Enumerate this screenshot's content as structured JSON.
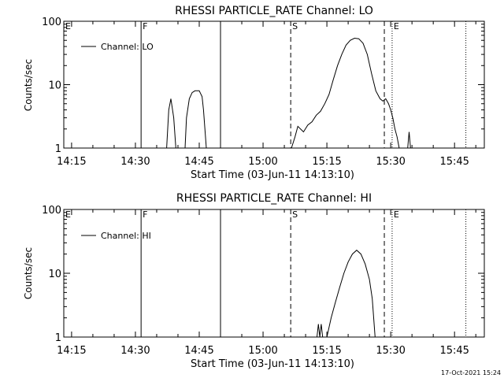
{
  "footer": {
    "timestamp": "17-Oct-2021 15:24"
  },
  "chart_data": [
    {
      "type": "line",
      "title": "RHESSI PARTICLE_RATE Channel: LO",
      "xlabel": "Start Time (03-Jun-11 14:13:10)",
      "ylabel": "Counts/sec",
      "yscale": "log",
      "xlim": [
        "14:13:10",
        "15:52:00"
      ],
      "ylim": [
        1,
        100
      ],
      "x_ticks": [
        "14:15",
        "14:30",
        "14:45",
        "15:00",
        "15:15",
        "15:30",
        "15:45"
      ],
      "y_ticks": [
        "1",
        "10",
        "100"
      ],
      "legend": {
        "position": "top-left",
        "entries": [
          "Channel: LO"
        ]
      },
      "markers": [
        {
          "label": "F",
          "time": "14:31:20",
          "style": "solid-thin"
        },
        {
          "label": "",
          "time": "14:50:00",
          "style": "solid"
        },
        {
          "label": "S",
          "time": "15:06:30",
          "style": "dashed"
        },
        {
          "label": "",
          "time": "15:28:30",
          "style": "dashed"
        },
        {
          "label": "E",
          "time": "15:30:20",
          "style": "dotted"
        },
        {
          "label": "",
          "time": "15:47:40",
          "style": "dotted"
        },
        {
          "label": "E",
          "time": "14:13:10",
          "style": "edge"
        }
      ],
      "series": [
        {
          "name": "Channel: LO",
          "segments": [
            [
              [
                "14:37:20",
                1
              ],
              [
                "14:37:50",
                4
              ],
              [
                "14:38:20",
                6
              ],
              [
                "14:39:00",
                3
              ],
              [
                "14:39:30",
                1
              ]
            ],
            [
              [
                "14:41:40",
                1
              ],
              [
                "14:42:00",
                3
              ],
              [
                "14:42:40",
                6
              ],
              [
                "14:43:20",
                7.5
              ],
              [
                "14:44:00",
                8
              ],
              [
                "14:45:00",
                8
              ],
              [
                "14:45:40",
                6.5
              ],
              [
                "14:46:00",
                4
              ],
              [
                "14:46:40",
                1
              ]
            ],
            [
              [
                "15:06:40",
                1
              ],
              [
                "15:07:30",
                1.5
              ],
              [
                "15:08:10",
                2.2
              ],
              [
                "15:09:30",
                1.8
              ],
              [
                "15:10:30",
                2.3
              ],
              [
                "15:11:30",
                2.6
              ],
              [
                "15:12:30",
                3.3
              ],
              [
                "15:13:30",
                3.8
              ],
              [
                "15:14:30",
                5
              ],
              [
                "15:15:30",
                7
              ],
              [
                "15:16:30",
                12
              ],
              [
                "15:17:30",
                20
              ],
              [
                "15:18:30",
                30
              ],
              [
                "15:19:30",
                42
              ],
              [
                "15:20:30",
                50
              ],
              [
                "15:21:30",
                54
              ],
              [
                "15:22:30",
                53
              ],
              [
                "15:23:30",
                45
              ],
              [
                "15:24:30",
                30
              ],
              [
                "15:25:30",
                15
              ],
              [
                "15:26:30",
                8
              ],
              [
                "15:27:30",
                6
              ],
              [
                "15:28:10",
                5.5
              ],
              [
                "15:28:50",
                6
              ],
              [
                "15:29:30",
                5
              ],
              [
                "15:30:00",
                4
              ],
              [
                "15:30:30",
                3
              ],
              [
                "15:31:00",
                2
              ],
              [
                "15:31:30",
                1.5
              ],
              [
                "15:32:00",
                1
              ]
            ],
            [
              [
                "15:34:00",
                1
              ],
              [
                "15:34:20",
                1.8
              ],
              [
                "15:34:40",
                1
              ]
            ]
          ]
        }
      ]
    },
    {
      "type": "line",
      "title": "RHESSI PARTICLE_RATE Channel: HI",
      "xlabel": "Start Time (03-Jun-11 14:13:10)",
      "ylabel": "Counts/sec",
      "yscale": "log",
      "xlim": [
        "14:13:10",
        "15:52:00"
      ],
      "ylim": [
        1,
        100
      ],
      "x_ticks": [
        "14:15",
        "14:30",
        "14:45",
        "15:00",
        "15:15",
        "15:30",
        "15:45"
      ],
      "y_ticks": [
        "1",
        "10",
        "100"
      ],
      "legend": {
        "position": "top-left",
        "entries": [
          "Channel: HI"
        ]
      },
      "markers": [
        {
          "label": "F",
          "time": "14:31:20",
          "style": "solid-thin"
        },
        {
          "label": "",
          "time": "14:50:00",
          "style": "solid"
        },
        {
          "label": "S",
          "time": "15:06:30",
          "style": "dashed"
        },
        {
          "label": "",
          "time": "15:28:30",
          "style": "dashed"
        },
        {
          "label": "E",
          "time": "15:30:20",
          "style": "dotted"
        },
        {
          "label": "",
          "time": "15:47:40",
          "style": "dotted"
        },
        {
          "label": "E",
          "time": "14:13:10",
          "style": "edge"
        }
      ],
      "series": [
        {
          "name": "Channel: HI",
          "segments": [
            [
              [
                "15:12:40",
                1
              ],
              [
                "15:13:00",
                1.6
              ],
              [
                "15:13:20",
                1
              ],
              [
                "15:13:40",
                1.6
              ],
              [
                "15:14:00",
                1
              ]
            ],
            [
              [
                "15:15:00",
                1
              ],
              [
                "15:16:00",
                2
              ],
              [
                "15:17:00",
                3.5
              ],
              [
                "15:18:00",
                6
              ],
              [
                "15:19:00",
                10
              ],
              [
                "15:20:00",
                15
              ],
              [
                "15:21:00",
                20
              ],
              [
                "15:22:00",
                23
              ],
              [
                "15:23:00",
                20
              ],
              [
                "15:24:00",
                14
              ],
              [
                "15:25:00",
                8
              ],
              [
                "15:25:40",
                4
              ],
              [
                "15:26:20",
                1
              ]
            ]
          ]
        }
      ]
    }
  ]
}
